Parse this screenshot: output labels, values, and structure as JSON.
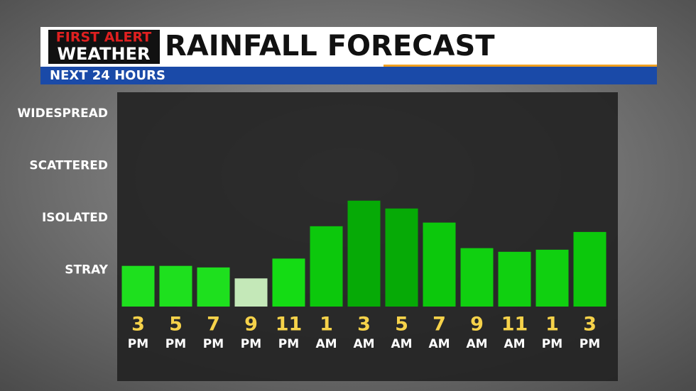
{
  "logo": {
    "line1": "FIRST ALERT",
    "line2": "WEATHER"
  },
  "chart_data": {
    "type": "bar",
    "title": "RAINFALL FORECAST",
    "subtitle": "NEXT 24 HOURS",
    "categories": [
      "3",
      "5",
      "7",
      "9",
      "11",
      "1",
      "3",
      "5",
      "7",
      "9",
      "11",
      "1",
      "3"
    ],
    "periods": [
      "PM",
      "PM",
      "PM",
      "PM",
      "PM",
      "AM",
      "AM",
      "AM",
      "AM",
      "AM",
      "AM",
      "PM",
      "PM"
    ],
    "values": [
      1.08,
      1.08,
      1.05,
      0.84,
      1.22,
      1.84,
      2.33,
      2.18,
      1.91,
      1.42,
      1.35,
      1.39,
      1.73
    ],
    "colors": [
      "#1ee01e",
      "#1ee01e",
      "#1ee01e",
      "#c4e8b8",
      "#14dc14",
      "#0cc80c",
      "#06aa06",
      "#06aa06",
      "#0cc80c",
      "#10d010",
      "#10d010",
      "#10d010",
      "#0cc80c"
    ],
    "ylim": [
      0.3,
      4.3
    ],
    "yticks": [
      {
        "value": 1,
        "label": "STRAY"
      },
      {
        "value": 2,
        "label": "ISOLATED"
      },
      {
        "value": 3,
        "label": "SCATTERED"
      },
      {
        "value": 4,
        "label": "WIDESPREAD"
      }
    ],
    "grid": false
  }
}
